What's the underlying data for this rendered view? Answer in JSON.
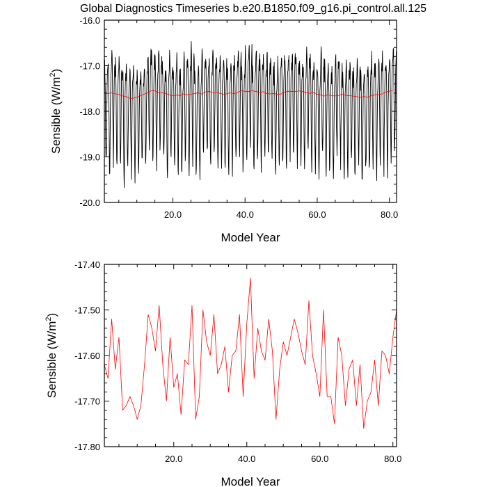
{
  "title": "Global Diagnostics Timeseries b.e20.B1850.f09_g16.pi_control.all.125",
  "chart_data": [
    {
      "type": "line",
      "ylabel_main": "Sensible (W/m",
      "ylabel_sup": "2",
      "ylabel_end": ")",
      "xlabel": "Model Year",
      "xlim": [
        1,
        82
      ],
      "ylim": [
        -20.0,
        -16.0
      ],
      "x_ticks": [
        {
          "value": 20,
          "label": "20.0"
        },
        {
          "value": 40,
          "label": "40.0"
        },
        {
          "value": 60,
          "label": "60.0"
        },
        {
          "value": 80,
          "label": "80.0"
        }
      ],
      "y_ticks": [
        {
          "value": -16.0,
          "label": "-16.0"
        },
        {
          "value": -17.0,
          "label": "-17.0"
        },
        {
          "value": -18.0,
          "label": "-18.0"
        },
        {
          "value": -19.0,
          "label": "-19.0"
        },
        {
          "value": -20.0,
          "label": "-20.0"
        }
      ],
      "series": [
        {
          "color": "#000000",
          "monthly": true,
          "seasonal_cycle": [
            -17.1,
            -16.85,
            -17.0,
            -17.5,
            -18.3,
            -18.9,
            -19.1,
            -18.6,
            -17.9,
            -17.4,
            -17.15,
            -17.05
          ],
          "values": [
            -17.62,
            -17.65,
            -17.52,
            -17.63,
            -17.56,
            -17.72,
            -17.71,
            -17.69,
            -17.71,
            -17.74,
            -17.71,
            -17.62,
            -17.51,
            -17.54,
            -17.59,
            -17.49,
            -17.62,
            -17.7,
            -17.56,
            -17.67,
            -17.64,
            -17.73,
            -17.61,
            -17.62,
            -17.49,
            -17.74,
            -17.69,
            -17.5,
            -17.57,
            -17.6,
            -17.51,
            -17.64,
            -17.62,
            -17.58,
            -17.68,
            -17.6,
            -17.59,
            -17.51,
            -17.69,
            -17.53,
            -17.43,
            -17.65,
            -17.54,
            -17.59,
            -17.61,
            -17.52,
            -17.59,
            -17.74,
            -17.63,
            -17.57,
            -17.6,
            -17.56,
            -17.52,
            -17.55,
            -17.59,
            -17.62,
            -17.48,
            -17.6,
            -17.64,
            -17.69,
            -17.5,
            -17.69,
            -17.69,
            -17.75,
            -17.56,
            -17.6,
            -17.71,
            -17.63,
            -17.61,
            -17.71,
            -17.62,
            -17.76,
            -17.7,
            -17.68,
            -17.61,
            -17.71,
            -17.59,
            -17.6,
            -17.64,
            -17.56,
            -17.5
          ]
        },
        {
          "color": "#ff0000",
          "smoothed": true,
          "values": [
            -17.62,
            -17.65,
            -17.52,
            -17.63,
            -17.56,
            -17.72,
            -17.71,
            -17.69,
            -17.71,
            -17.74,
            -17.71,
            -17.62,
            -17.51,
            -17.54,
            -17.59,
            -17.49,
            -17.62,
            -17.7,
            -17.56,
            -17.67,
            -17.64,
            -17.73,
            -17.61,
            -17.62,
            -17.49,
            -17.74,
            -17.69,
            -17.5,
            -17.57,
            -17.6,
            -17.51,
            -17.64,
            -17.62,
            -17.58,
            -17.68,
            -17.6,
            -17.59,
            -17.51,
            -17.69,
            -17.53,
            -17.43,
            -17.65,
            -17.54,
            -17.59,
            -17.61,
            -17.52,
            -17.59,
            -17.74,
            -17.63,
            -17.57,
            -17.6,
            -17.56,
            -17.52,
            -17.55,
            -17.59,
            -17.62,
            -17.48,
            -17.6,
            -17.64,
            -17.69,
            -17.5,
            -17.69,
            -17.69,
            -17.75,
            -17.56,
            -17.6,
            -17.71,
            -17.63,
            -17.61,
            -17.71,
            -17.62,
            -17.76,
            -17.7,
            -17.68,
            -17.61,
            -17.71,
            -17.59,
            -17.6,
            -17.64,
            -17.56,
            -17.5
          ]
        }
      ]
    },
    {
      "type": "line",
      "ylabel_main": "Sensible (W/m",
      "ylabel_sup": "2",
      "ylabel_end": ")",
      "xlabel": "Model Year",
      "xlim": [
        1,
        81
      ],
      "ylim": [
        -17.8,
        -17.4
      ],
      "x_ticks": [
        {
          "value": 20,
          "label": "20.0"
        },
        {
          "value": 40,
          "label": "40.0"
        },
        {
          "value": 60,
          "label": "60.0"
        },
        {
          "value": 80,
          "label": "80.0"
        }
      ],
      "y_ticks": [
        {
          "value": -17.4,
          "label": "-17.40"
        },
        {
          "value": -17.5,
          "label": "-17.50"
        },
        {
          "value": -17.6,
          "label": "-17.60"
        },
        {
          "value": -17.7,
          "label": "-17.70"
        },
        {
          "value": -17.8,
          "label": "-17.80"
        }
      ],
      "series": [
        {
          "color": "#ff0000",
          "x_start": 1,
          "values": [
            -17.62,
            -17.65,
            -17.52,
            -17.63,
            -17.56,
            -17.72,
            -17.71,
            -17.69,
            -17.71,
            -17.74,
            -17.71,
            -17.62,
            -17.51,
            -17.54,
            -17.59,
            -17.49,
            -17.62,
            -17.7,
            -17.56,
            -17.67,
            -17.64,
            -17.73,
            -17.61,
            -17.62,
            -17.49,
            -17.74,
            -17.69,
            -17.5,
            -17.57,
            -17.6,
            -17.51,
            -17.64,
            -17.62,
            -17.58,
            -17.68,
            -17.6,
            -17.59,
            -17.51,
            -17.69,
            -17.53,
            -17.43,
            -17.65,
            -17.54,
            -17.59,
            -17.61,
            -17.52,
            -17.59,
            -17.74,
            -17.63,
            -17.57,
            -17.6,
            -17.56,
            -17.52,
            -17.55,
            -17.59,
            -17.62,
            -17.48,
            -17.6,
            -17.64,
            -17.69,
            -17.5,
            -17.69,
            -17.69,
            -17.75,
            -17.56,
            -17.6,
            -17.71,
            -17.63,
            -17.61,
            -17.71,
            -17.62,
            -17.76,
            -17.7,
            -17.68,
            -17.61,
            -17.71,
            -17.59,
            -17.6,
            -17.64,
            -17.56,
            -17.5
          ]
        }
      ]
    }
  ]
}
